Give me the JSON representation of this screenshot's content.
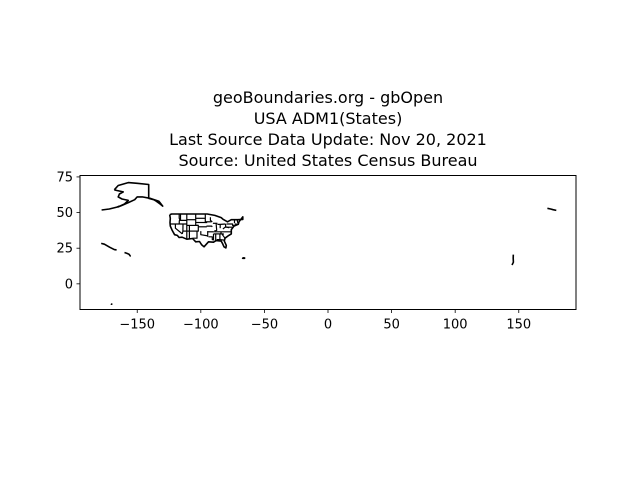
{
  "title_lines": [
    "geoBoundaries.org - gbOpen",
    "USA ADM1(States)",
    "Last Source Data Update: Nov 20, 2021",
    "Source: United States Census Bureau"
  ],
  "chart_data": {
    "type": "map",
    "title": "geoBoundaries.org - gbOpen\nUSA ADM1(States)\nLast Source Data Update: Nov 20, 2021\nSource: United States Census Bureau",
    "xlabel": "",
    "ylabel": "",
    "xlim": [
      -195,
      195
    ],
    "ylim": [
      -18,
      76
    ],
    "xticks": [
      -150,
      -100,
      -50,
      0,
      50,
      100,
      150
    ],
    "yticks": [
      0,
      25,
      50,
      75
    ],
    "xtick_labels": [
      "−150",
      "−100",
      "−50",
      "0",
      "50",
      "100",
      "150"
    ],
    "ytick_labels": [
      "0",
      "25",
      "50",
      "75"
    ],
    "grid": false,
    "stroke_color": "#000000",
    "regions": [
      {
        "name": "Alaska",
        "outline": [
          [
            -168,
            66
          ],
          [
            -165,
            69
          ],
          [
            -157,
            71
          ],
          [
            -150,
            70.5
          ],
          [
            -141,
            69.7
          ],
          [
            -141,
            60
          ],
          [
            -137,
            59
          ],
          [
            -135,
            58
          ],
          [
            -132,
            56
          ],
          [
            -130,
            54.5
          ],
          [
            -133,
            58
          ],
          [
            -140,
            60
          ],
          [
            -146,
            61
          ],
          [
            -150,
            61
          ],
          [
            -152,
            59
          ],
          [
            -157,
            57
          ],
          [
            -162,
            55
          ],
          [
            -165,
            54
          ],
          [
            -160,
            56
          ],
          [
            -157,
            58.5
          ],
          [
            -162,
            59.5
          ],
          [
            -165,
            61
          ],
          [
            -164,
            63
          ],
          [
            -161,
            64.5
          ],
          [
            -166,
            65.5
          ],
          [
            -168,
            66
          ]
        ]
      },
      {
        "name": "Aleutian Islands",
        "outline": [
          [
            -178,
            51.8
          ],
          [
            -172,
            52.5
          ],
          [
            -166,
            53.8
          ],
          [
            -164,
            54.5
          ]
        ]
      },
      {
        "name": "Contiguous US",
        "outline": [
          [
            -124.5,
            48.5
          ],
          [
            -123,
            49
          ],
          [
            -95,
            49
          ],
          [
            -89,
            48
          ],
          [
            -84,
            46.5
          ],
          [
            -82.5,
            45.3
          ],
          [
            -79,
            43.5
          ],
          [
            -76,
            45
          ],
          [
            -71,
            45
          ],
          [
            -67,
            45.2
          ],
          [
            -67,
            47
          ],
          [
            -70,
            43.5
          ],
          [
            -70.5,
            41.8
          ],
          [
            -74,
            40.5
          ],
          [
            -76,
            38
          ],
          [
            -76,
            35
          ],
          [
            -78,
            34
          ],
          [
            -81,
            32
          ],
          [
            -81.5,
            30
          ],
          [
            -80,
            27
          ],
          [
            -80.3,
            25.2
          ],
          [
            -81.8,
            26
          ],
          [
            -82.8,
            28
          ],
          [
            -84,
            30
          ],
          [
            -88,
            30.3
          ],
          [
            -90,
            29.2
          ],
          [
            -94,
            29.5
          ],
          [
            -97.5,
            26
          ],
          [
            -99.5,
            27.5
          ],
          [
            -101,
            29.7
          ],
          [
            -104,
            29.5
          ],
          [
            -106.5,
            31.8
          ],
          [
            -111,
            31.3
          ],
          [
            -114.7,
            32.7
          ],
          [
            -117.1,
            32.5
          ],
          [
            -118.5,
            34
          ],
          [
            -120.6,
            34.5
          ],
          [
            -122.5,
            37.5
          ],
          [
            -124,
            40.5
          ],
          [
            -124.2,
            43
          ],
          [
            -124,
            46
          ],
          [
            -124.5,
            48.5
          ]
        ]
      },
      {
        "name": "Hawaii",
        "outline": [
          [
            -160,
            22
          ],
          [
            -157.8,
            21.3
          ],
          [
            -156.5,
            20.8
          ],
          [
            -155.5,
            19.6
          ],
          [
            -155.8,
            19.2
          ]
        ]
      },
      {
        "name": "NW Hawaiian Islands",
        "outline": [
          [
            -178.3,
            28.4
          ],
          [
            -175.8,
            27.8
          ],
          [
            -171.7,
            25.7
          ],
          [
            -168,
            24
          ],
          [
            -166.2,
            23.8
          ]
        ]
      },
      {
        "name": "Puerto Rico",
        "outline": [
          [
            -67.3,
            18.3
          ],
          [
            -65.6,
            18.2
          ],
          [
            -65.6,
            17.9
          ],
          [
            -67.1,
            17.9
          ],
          [
            -67.3,
            18.3
          ]
        ]
      },
      {
        "name": "Northern Mariana Islands & Guam",
        "outline": [
          [
            145.7,
            20.5
          ],
          [
            145.6,
            18
          ],
          [
            145.8,
            15.2
          ],
          [
            144.8,
            13.5
          ],
          [
            144.7,
            13.2
          ]
        ]
      },
      {
        "name": "Western Aleutians",
        "outline": [
          [
            172.5,
            53
          ],
          [
            175,
            52.5
          ],
          [
            177,
            52
          ],
          [
            179.5,
            51.5
          ]
        ]
      },
      {
        "name": "American Samoa",
        "outline": [
          [
            -170.8,
            -14.2
          ],
          [
            -170.5,
            -14.3
          ],
          [
            -169.5,
            -14.2
          ]
        ]
      }
    ],
    "internal_borders": [
      [
        [
          -117,
          49
        ],
        [
          -117,
          46
        ],
        [
          -116.5,
          45.5
        ],
        [
          -116.9,
          44
        ],
        [
          -117,
          42
        ]
      ],
      [
        [
          -124.2,
          42
        ],
        [
          -111,
          42
        ]
      ],
      [
        [
          -120,
          42
        ],
        [
          -120,
          39
        ],
        [
          -114.6,
          35
        ]
      ],
      [
        [
          -114.6,
          35
        ],
        [
          -114.1,
          37
        ],
        [
          -114,
          42
        ]
      ],
      [
        [
          -111,
          49
        ],
        [
          -111,
          31.3
        ]
      ],
      [
        [
          -116,
          49
        ],
        [
          -116,
          44.5
        ],
        [
          -111,
          44.5
        ]
      ],
      [
        [
          -111,
          45
        ],
        [
          -104,
          45
        ]
      ],
      [
        [
          -111,
          41
        ],
        [
          -102,
          41
        ]
      ],
      [
        [
          -114,
          37
        ],
        [
          -103,
          37
        ]
      ],
      [
        [
          -109,
          41
        ],
        [
          -109,
          31.3
        ]
      ],
      [
        [
          -104,
          49
        ],
        [
          -104,
          41
        ],
        [
          -102,
          41
        ],
        [
          -102,
          37
        ],
        [
          -103,
          37
        ],
        [
          -103,
          32
        ],
        [
          -106.5,
          32
        ]
      ],
      [
        [
          -96.5,
          49
        ],
        [
          -96.5,
          43
        ],
        [
          -95,
          43
        ]
      ],
      [
        [
          -104,
          46
        ],
        [
          -96.5,
          46
        ]
      ],
      [
        [
          -104,
          43
        ],
        [
          -96.5,
          43
        ]
      ],
      [
        [
          -102,
          40
        ],
        [
          -95.3,
          40
        ]
      ],
      [
        [
          -100,
          37
        ],
        [
          -100,
          34.5
        ],
        [
          -94.5,
          33.6
        ]
      ],
      [
        [
          -94.6,
          37
        ],
        [
          -94.6,
          33
        ]
      ],
      [
        [
          -91.5,
          43.5
        ],
        [
          -96.5,
          43.5
        ]
      ],
      [
        [
          -95.5,
          40.5
        ],
        [
          -91.5,
          40.5
        ],
        [
          -91,
          40
        ]
      ],
      [
        [
          -94.6,
          36.5
        ],
        [
          -89.7,
          36.5
        ]
      ],
      [
        [
          -94,
          33
        ],
        [
          -91,
          33
        ],
        [
          -91,
          31
        ],
        [
          -89.7,
          31
        ]
      ],
      [
        [
          -90,
          35
        ],
        [
          -90,
          30.5
        ]
      ],
      [
        [
          -88.3,
          35
        ],
        [
          -88.3,
          30.3
        ]
      ],
      [
        [
          -85,
          35
        ],
        [
          -85,
          31
        ]
      ],
      [
        [
          -87.5,
          31
        ],
        [
          -85,
          31
        ],
        [
          -81.5,
          30.7
        ]
      ],
      [
        [
          -90,
          35
        ],
        [
          -82,
          35
        ]
      ],
      [
        [
          -82,
          35
        ],
        [
          -83,
          34.5
        ],
        [
          -81,
          32
        ]
      ],
      [
        [
          -88,
          42.5
        ],
        [
          -87.5,
          37.5
        ],
        [
          -89.5,
          37
        ]
      ],
      [
        [
          -84.8,
          42
        ],
        [
          -84.8,
          39
        ]
      ],
      [
        [
          -90.5,
          42.5
        ],
        [
          -87,
          42.5
        ]
      ],
      [
        [
          -92.5,
          46.7
        ],
        [
          -92.5,
          44.5
        ],
        [
          -91,
          43.5
        ]
      ],
      [
        [
          -87,
          41.7
        ],
        [
          -84.8,
          41.7
        ],
        [
          -80.5,
          42
        ]
      ],
      [
        [
          -80.5,
          42
        ],
        [
          -80.5,
          39.7
        ],
        [
          -75,
          39.7
        ]
      ],
      [
        [
          -89.5,
          36.5
        ],
        [
          -81.7,
          36.5
        ],
        [
          -75.9,
          36.5
        ]
      ],
      [
        [
          -82.6,
          38.5
        ],
        [
          -80.5,
          40
        ],
        [
          -77.7,
          39.3
        ]
      ],
      [
        [
          -84,
          36.6
        ],
        [
          -84.3,
          35
        ]
      ],
      [
        [
          -79.8,
          42
        ],
        [
          -75,
          42
        ],
        [
          -75,
          41
        ],
        [
          -73.7,
          41
        ]
      ],
      [
        [
          -73.5,
          42.7
        ],
        [
          -73.5,
          45
        ]
      ],
      [
        [
          -71.5,
          45
        ],
        [
          -71,
          43
        ],
        [
          -70.5,
          42
        ]
      ],
      [
        [
          -71.8,
          42
        ],
        [
          -73.5,
          42
        ]
      ]
    ]
  }
}
